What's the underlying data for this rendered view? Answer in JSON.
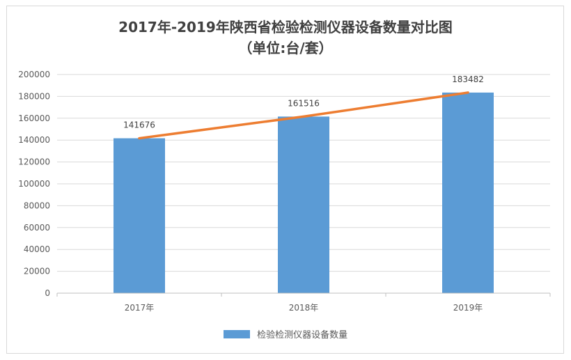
{
  "title": {
    "line1": "2017年-2019年陕西省检验检测仪器设备数量对比图",
    "line2": "（单位:台/套）"
  },
  "colors": {
    "bar": "#5b9bd5",
    "line": "#ed7d31",
    "grid": "#d9d9d9",
    "axis": "#bfbfbf"
  },
  "chart_data": {
    "type": "bar",
    "title": "2017年-2019年陕西省检验检测仪器设备数量对比图（单位:台/套）",
    "categories": [
      "2017年",
      "2018年",
      "2019年"
    ],
    "series": [
      {
        "name": "检验检测仪器设备数量",
        "type": "bar",
        "values": [
          141676,
          161516,
          183482
        ]
      },
      {
        "type": "line",
        "values": [
          141676,
          161516,
          183482
        ]
      }
    ],
    "ylim": [
      0,
      200000
    ],
    "yticks": [
      0,
      20000,
      40000,
      60000,
      80000,
      100000,
      120000,
      140000,
      160000,
      180000,
      200000
    ],
    "grid": true,
    "legend": "bottom",
    "data_labels": [
      "141676",
      "161516",
      "183482"
    ]
  },
  "legend": {
    "label": "检验检测仪器设备数量"
  }
}
